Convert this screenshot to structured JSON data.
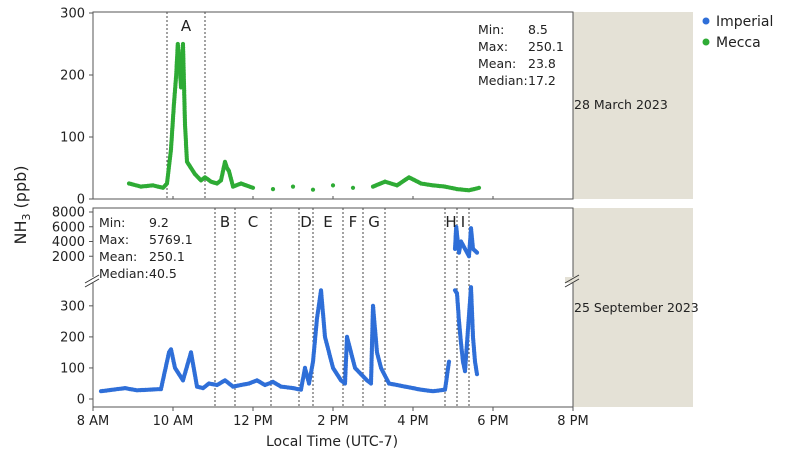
{
  "chart_data": {
    "type": "scatter",
    "ylabel": "NH",
    "ylabel_sub": "3",
    "ylabel_unit": " (ppb)",
    "xlabel": "Local Time (UTC-7)",
    "legend": {
      "placement": "top-right",
      "entries": [
        "Imperial",
        "Mecca"
      ]
    },
    "colors": {
      "Imperial": "#2f6fd8",
      "Mecca": "#2eab35",
      "panel_side": "#e4e1d6"
    },
    "x_ticks": [
      "8 AM",
      "10 AM",
      "12 PM",
      "2 PM",
      "4 PM",
      "6 PM",
      "8 PM"
    ],
    "xlim_hours": [
      8,
      20
    ],
    "panels": [
      {
        "site": "Mecca",
        "date_label": "28 March 2023",
        "ylim": [
          0,
          300
        ],
        "y_ticks": [
          0,
          100,
          200,
          300
        ],
        "stats": {
          "Min:": "8.5",
          "Max:": "250.1",
          "Mean:": "23.8",
          "Median:": "17.2"
        },
        "events": [
          {
            "label": "A",
            "start": 9.85,
            "end": 10.8
          }
        ],
        "series": [
          {
            "name": "Mecca",
            "x": [
              8.9,
              9.2,
              9.5,
              9.75,
              9.85,
              9.95,
              10.02,
              10.08,
              10.12,
              10.15,
              10.2,
              10.25,
              10.3,
              10.35,
              10.4,
              10.45,
              10.55,
              10.7,
              10.8,
              10.95,
              11.1,
              11.2,
              11.3,
              11.35,
              11.4,
              11.5,
              11.7,
              12.0,
              12.5,
              13.0,
              13.5,
              14.0,
              14.5,
              15.0,
              15.3,
              15.6,
              15.9,
              16.2,
              16.5,
              16.8,
              17.1,
              17.4,
              17.65
            ],
            "values": [
              25,
              20,
              22,
              18,
              25,
              80,
              150,
              200,
              250,
              230,
              180,
              250,
              120,
              60,
              55,
              50,
              40,
              30,
              35,
              28,
              25,
              30,
              60,
              50,
              45,
              20,
              25,
              18,
              16,
              20,
              15,
              22,
              18,
              20,
              28,
              22,
              35,
              25,
              22,
              20,
              16,
              14,
              18
            ]
          }
        ]
      },
      {
        "site": "Imperial",
        "date_label": "25 September 2023",
        "upper_ylim": [
          0,
          8000
        ],
        "upper_y_ticks": [
          2000,
          4000,
          6000,
          8000
        ],
        "lower_ylim": [
          0,
          380
        ],
        "lower_y_ticks": [
          0,
          100,
          200,
          300
        ],
        "stats": {
          "Min:": "9.2",
          "Max:": "5769.1",
          "Mean:": "250.1",
          "Median:": "40.5"
        },
        "events": [
          {
            "label": "B",
            "start": 11.05,
            "end": 11.55
          },
          {
            "label": "C",
            "start": 11.55,
            "end": 12.45
          },
          {
            "label": "D",
            "start": 13.15,
            "end": 13.5
          },
          {
            "label": "E",
            "start": 13.5,
            "end": 14.25
          },
          {
            "label": "F",
            "start": 14.25,
            "end": 14.75
          },
          {
            "label": "G",
            "start": 14.75,
            "end": 15.3
          },
          {
            "label": "H",
            "start": 16.8,
            "end": 17.1
          },
          {
            "label": "I",
            "start": 17.1,
            "end": 17.4
          }
        ],
        "series": [
          {
            "name": "Imperial",
            "x": [
              8.2,
              8.5,
              8.8,
              9.1,
              9.4,
              9.7,
              9.9,
              9.95,
              10.05,
              10.15,
              10.25,
              10.45,
              10.6,
              10.75,
              10.9,
              11.1,
              11.3,
              11.5,
              11.7,
              11.9,
              12.1,
              12.3,
              12.5,
              12.7,
              13.0,
              13.2,
              13.3,
              13.4,
              13.5,
              13.6,
              13.7,
              13.8,
              13.9,
              14.0,
              14.1,
              14.2,
              14.3,
              14.35,
              14.45,
              14.55,
              14.7,
              14.85,
              14.95,
              15.0,
              15.1,
              15.2,
              15.4,
              15.8,
              16.2,
              16.5,
              16.8,
              16.9,
              17.0,
              17.05,
              17.08,
              17.15,
              17.2,
              17.3,
              17.4,
              17.45,
              17.5,
              17.6
            ],
            "values": [
              25,
              30,
              35,
              28,
              30,
              32,
              150,
              160,
              100,
              80,
              60,
              150,
              40,
              35,
              50,
              45,
              60,
              40,
              45,
              50,
              60,
              45,
              55,
              40,
              35,
              30,
              100,
              50,
              120,
              260,
              350,
              200,
              150,
              100,
              80,
              60,
              50,
              200,
              150,
              100,
              80,
              60,
              50,
              300,
              150,
              100,
              50,
              40,
              30,
              25,
              30,
              120,
              60,
              3000,
              6000,
              2500,
              4000,
              3000,
              2000,
              5800,
              3000,
              2500
            ]
          },
          {
            "name": "Imperial",
            "x": [
              17.05,
              17.1,
              17.15,
              17.2,
              17.25,
              17.3,
              17.45,
              17.5,
              17.55,
              17.6
            ],
            "values": [
              350,
              340,
              250,
              180,
              120,
              90,
              360,
              200,
              120,
              80
            ]
          }
        ]
      }
    ]
  }
}
